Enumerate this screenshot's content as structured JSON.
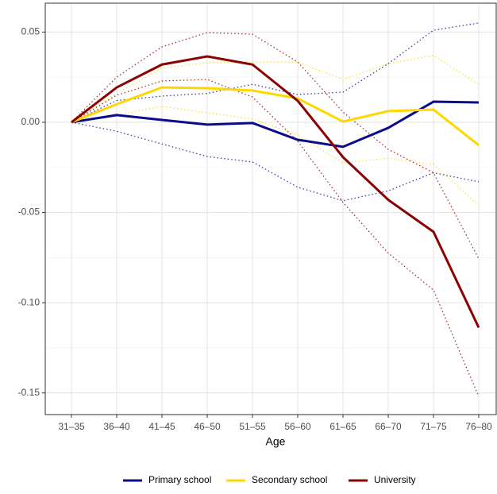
{
  "chart_data": {
    "type": "line",
    "x_label": "Age",
    "categories": [
      "31–35",
      "36–40",
      "41–45",
      "46–50",
      "51–55",
      "56–60",
      "61–65",
      "66–70",
      "71–75",
      "76–80"
    ],
    "ylim": [
      -0.162,
      0.066
    ],
    "yticks": [
      0.05,
      {
        "value": 0,
        "label": "0.00"
      },
      -0.05,
      {
        "value": -0.1,
        "label": "-0.10"
      },
      -0.15
    ],
    "grid": true,
    "legend": "bottom",
    "series": [
      {
        "name": "Primary school",
        "color": "#0a0a8c",
        "values": [
          0,
          0.004,
          0.0013,
          -0.0013,
          -0.0004,
          -0.0097,
          -0.0136,
          -0.0031,
          0.0114,
          0.011
        ],
        "upper": [
          0,
          0.012,
          0.0145,
          0.016,
          0.021,
          0.0154,
          0.0167,
          0.0325,
          0.051,
          0.055
        ],
        "lower": [
          0,
          -0.005,
          -0.012,
          -0.019,
          -0.022,
          -0.036,
          -0.0435,
          -0.038,
          -0.028,
          -0.033
        ]
      },
      {
        "name": "Secondary school",
        "color": "#ffd700",
        "values": [
          0,
          0.01,
          0.0193,
          0.0189,
          0.0176,
          0.0132,
          0.0004,
          0.0062,
          0.007,
          -0.0127
        ],
        "upper": [
          0,
          0.016,
          0.03,
          0.033,
          0.0334,
          0.0334,
          0.0237,
          0.0325,
          0.037,
          0.021
        ],
        "lower": [
          0,
          0.004,
          0.0088,
          0.0053,
          0.0018,
          -0.007,
          -0.0224,
          -0.02,
          -0.0233,
          -0.046
        ]
      },
      {
        "name": "University",
        "color": "#8b0000",
        "values": [
          0,
          0.0193,
          0.032,
          0.0365,
          0.032,
          0.0119,
          -0.0193,
          -0.043,
          -0.0607,
          -0.1138
        ],
        "upper": [
          0,
          0.025,
          0.0418,
          0.0497,
          0.0488,
          0.0334,
          0.0057,
          -0.015,
          -0.028,
          -0.0756
        ],
        "lower": [
          0,
          0.015,
          0.0229,
          0.0237,
          0.014,
          -0.0105,
          -0.0444,
          -0.0725,
          -0.093,
          -0.152
        ]
      }
    ]
  }
}
